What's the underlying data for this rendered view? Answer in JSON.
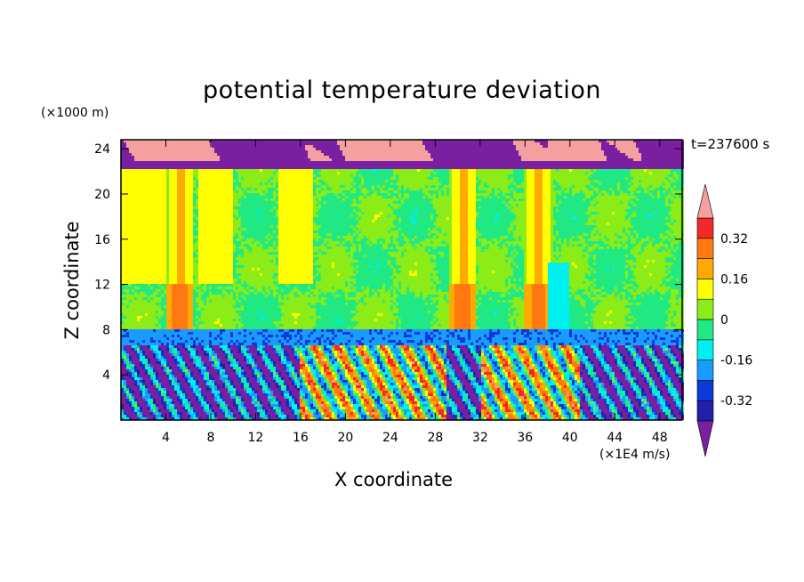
{
  "chart_data": {
    "type": "heatmap",
    "title": "potential temperature deviation",
    "xlabel": "X coordinate",
    "ylabel": "Z coordinate",
    "x_unit": "(×1E4 m/s)",
    "y_unit": "(×1000 m)",
    "timestamp": "t=237600 s",
    "xlim": [
      0,
      50
    ],
    "ylim": [
      0,
      24.8
    ],
    "x_ticks": [
      4,
      8,
      12,
      16,
      20,
      24,
      28,
      32,
      36,
      40,
      44,
      48
    ],
    "y_ticks": [
      4,
      8,
      12,
      16,
      20,
      24
    ],
    "colorbar": {
      "levels": [
        -0.4,
        -0.32,
        -0.24,
        -0.16,
        -0.08,
        0,
        0.08,
        0.16,
        0.24,
        0.32,
        0.4
      ],
      "tick_labels": [
        "0.32",
        "0.16",
        "0",
        "-0.16",
        "-0.32"
      ],
      "tick_values": [
        0.32,
        0.16,
        0,
        -0.16,
        -0.32
      ],
      "colors": [
        "#7a1fa0",
        "#2020a8",
        "#0a3ad8",
        "#1a9cff",
        "#00f0f0",
        "#20e882",
        "#8cec18",
        "#ffff00",
        "#ffaa00",
        "#ff7810",
        "#f42828",
        "#f4a0a0"
      ],
      "extend": "both"
    },
    "bands": [
      {
        "z": [
          22.2,
          24.8
        ],
        "description_value": "mixed -0.4 / 0.4"
      },
      {
        "z": [
          8,
          22.2
        ],
        "value": 0
      },
      {
        "z": [
          6.5,
          8
        ],
        "value": -0.2
      },
      {
        "z": [
          0,
          6.5
        ],
        "value": "variable"
      }
    ]
  }
}
